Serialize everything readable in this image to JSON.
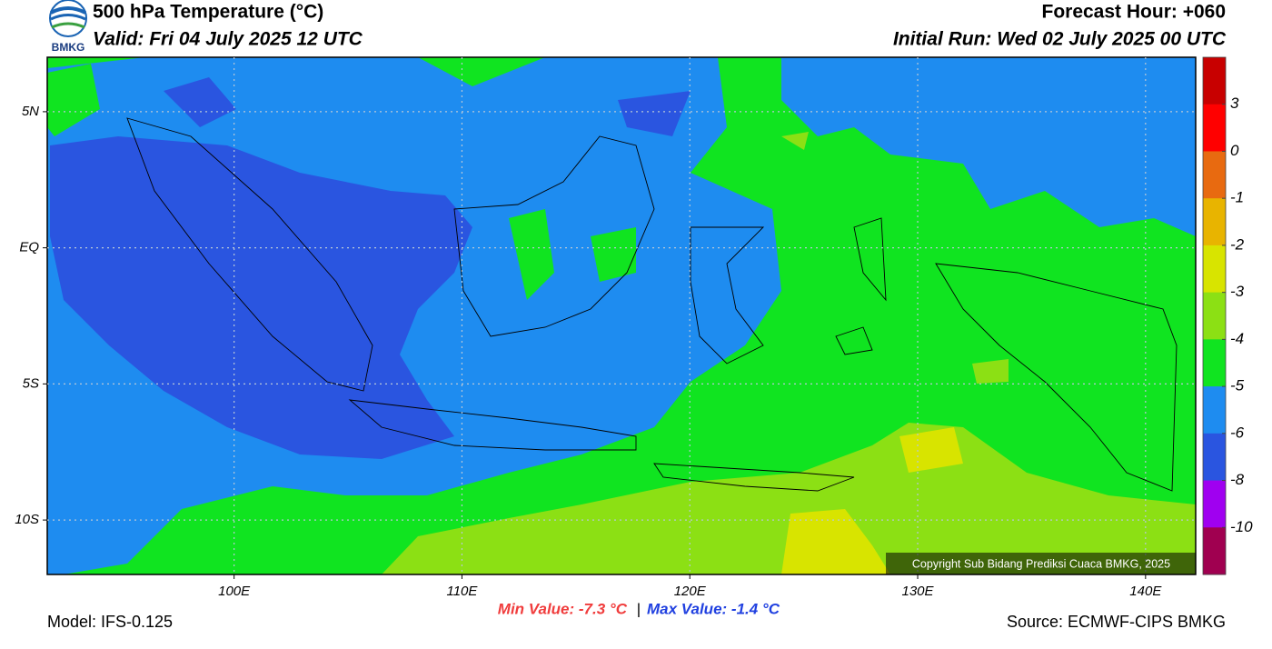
{
  "header": {
    "logo_text": "BMKG",
    "title": "500 hPa Temperature (°C)",
    "valid": "Valid: Fri 04 July 2025 12 UTC",
    "forecast_hour": "Forecast Hour: +060",
    "initial_run": "Initial Run: Wed 02 July 2025 00 UTC"
  },
  "map": {
    "xlim": [
      91.8,
      142.2
    ],
    "ylim": [
      -12,
      7
    ],
    "xticks": [
      {
        "value": 100,
        "label": "100E"
      },
      {
        "value": 110,
        "label": "110E"
      },
      {
        "value": 120,
        "label": "120E"
      },
      {
        "value": 130,
        "label": "130E"
      },
      {
        "value": 140,
        "label": "140E"
      }
    ],
    "yticks": [
      {
        "value": 5,
        "label": "5N"
      },
      {
        "value": 0,
        "label": "EQ"
      },
      {
        "value": -5,
        "label": "5S"
      },
      {
        "value": -10,
        "label": "10S"
      }
    ],
    "grid": true,
    "copyright": "Copyright Sub Bidang Prediksi Cuaca BMKG, 2025"
  },
  "colorbar": {
    "levels": [
      3,
      0,
      -1,
      -2,
      -3,
      -4,
      -5,
      -6,
      -8,
      -10
    ],
    "colors": [
      "#c80000",
      "#ff0000",
      "#e86a10",
      "#e8b400",
      "#d8e400",
      "#8ce014",
      "#10e420",
      "#1e8cf0",
      "#2a55e0",
      "#a000f0",
      "#a00050"
    ]
  },
  "footer": {
    "min": "Min Value: -7.3 °C",
    "separator": "|",
    "max": "Max Value: -1.4 °C",
    "model": "Model: IFS-0.125",
    "source": "Source: ECMWF-CIPS BMKG"
  }
}
